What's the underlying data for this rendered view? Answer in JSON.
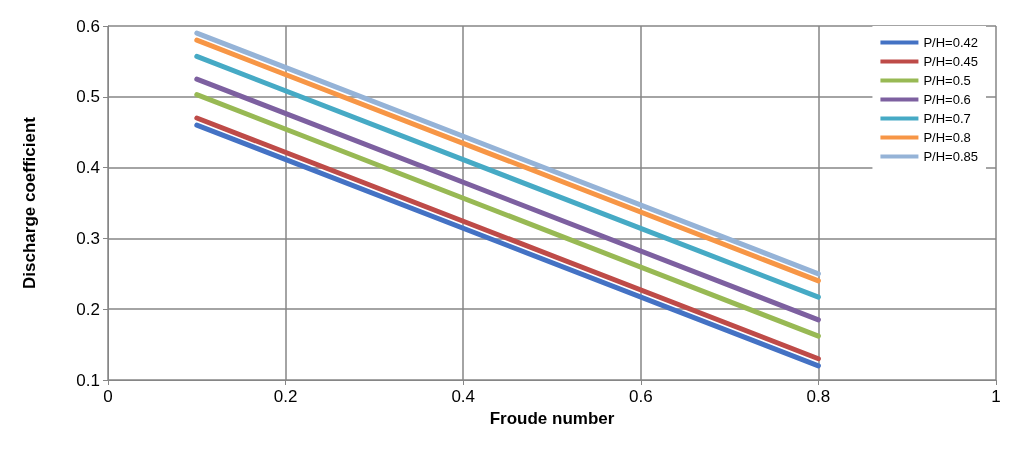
{
  "chart_data": {
    "type": "line",
    "xlabel": "Froude number",
    "ylabel": "Discharge coefficient",
    "x": [
      0.1,
      0.8
    ],
    "series": [
      {
        "name": "P/H=0.42",
        "color": "#4472c4",
        "values": [
          0.46,
          0.12
        ]
      },
      {
        "name": "P/H=0.45",
        "color": "#be4b48",
        "values": [
          0.47,
          0.13
        ]
      },
      {
        "name": "P/H=0.5",
        "color": "#98b954",
        "values": [
          0.503,
          0.162
        ]
      },
      {
        "name": "P/H=0.6",
        "color": "#7d60a0",
        "values": [
          0.525,
          0.185
        ]
      },
      {
        "name": "P/H=0.7",
        "color": "#46aac5",
        "values": [
          0.557,
          0.217
        ]
      },
      {
        "name": "P/H=0.8",
        "color": "#f79646",
        "values": [
          0.58,
          0.24
        ]
      },
      {
        "name": "P/H=0.85",
        "color": "#95b3d7",
        "values": [
          0.59,
          0.25
        ]
      }
    ],
    "xlim": [
      0,
      1
    ],
    "xticks": [
      0,
      0.2,
      0.4,
      0.6,
      0.8,
      1
    ],
    "ylim": [
      0.1,
      0.6
    ],
    "yticks": [
      0.1,
      0.2,
      0.3,
      0.4,
      0.5,
      0.6
    ],
    "grid": true,
    "legend": "top right",
    "marker": "none",
    "line_style": "solid"
  }
}
